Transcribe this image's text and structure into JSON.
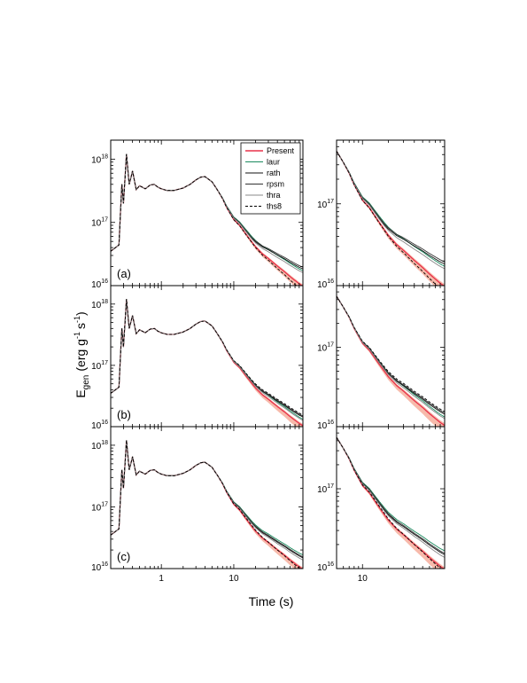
{
  "chart_data": {
    "type": "line",
    "xlabel": "Time (s)",
    "ylabel_main": "E",
    "ylabel_sub": "gen",
    "ylabel_units_open": "(erg g",
    "ylabel_exp1": "-1",
    "ylabel_units_mid": "s",
    "ylabel_exp2": "-1",
    "ylabel_units_close": ")",
    "x_scale": "log",
    "y_scale": "log",
    "left_xlim": [
      0.2,
      90
    ],
    "right_xlim": [
      5,
      90
    ],
    "ylim": [
      1e+16,
      2e+18
    ],
    "left_x_tick_labels": [
      "1",
      "10"
    ],
    "right_x_tick_labels": [
      "10"
    ],
    "y_tick_labels": [
      {
        "base": "10",
        "exp": "18"
      },
      {
        "base": "10",
        "exp": "17"
      },
      {
        "base": "10",
        "exp": "16"
      }
    ],
    "panels": [
      {
        "label": "(a)",
        "show_legend": true,
        "spread": "A"
      },
      {
        "label": "(b)",
        "show_legend": false,
        "spread": "B"
      },
      {
        "label": "(c)",
        "show_legend": false,
        "spread": "C"
      }
    ],
    "legend": {
      "position": "top-right",
      "entries": [
        {
          "name": "Present",
          "color": "#e8324a",
          "dash": "solid"
        },
        {
          "name": "laur",
          "color": "#1a8a5e",
          "dash": "solid"
        },
        {
          "name": "rath",
          "color": "#111111",
          "dash": "solid"
        },
        {
          "name": "rpsm",
          "color": "#333333",
          "dash": "solid"
        },
        {
          "name": "thra",
          "color": "#888888",
          "dash": "solid"
        },
        {
          "name": "ths8",
          "color": "#000000",
          "dash": "dashed"
        }
      ]
    },
    "base_curve": [
      [
        0.2,
        3.5e+16
      ],
      [
        0.26,
        4.4e+16
      ],
      [
        0.285,
        4e+17
      ],
      [
        0.3,
        2e+17
      ],
      [
        0.33,
        1.2e+18
      ],
      [
        0.36,
        4e+17
      ],
      [
        0.4,
        6.5e+17
      ],
      [
        0.45,
        3.3e+17
      ],
      [
        0.5,
        3.8e+17
      ],
      [
        0.6,
        3.4e+17
      ],
      [
        0.7,
        3.9e+17
      ],
      [
        0.8,
        4e+17
      ],
      [
        0.9,
        3.6e+17
      ],
      [
        1.0,
        3.4e+17
      ],
      [
        1.2,
        3.2e+17
      ],
      [
        1.5,
        3.2e+17
      ],
      [
        2.0,
        3.5e+17
      ],
      [
        2.5,
        4e+17
      ],
      [
        3.0,
        4.7e+17
      ],
      [
        3.5,
        5.2e+17
      ],
      [
        4.0,
        5.3e+17
      ],
      [
        5.0,
        4.4e+17
      ],
      [
        6.0,
        3.2e+17
      ],
      [
        7.0,
        2.4e+17
      ],
      [
        8.0,
        1.75e+17
      ],
      [
        10.0,
        1.15e+17
      ],
      [
        12.0,
        9.5e+16
      ],
      [
        15.0,
        6.8e+16
      ],
      [
        20.0,
        4.5e+16
      ],
      [
        25.0,
        3.5e+16
      ],
      [
        30.0,
        3e+16
      ],
      [
        40.0,
        2.3e+16
      ],
      [
        50.0,
        1.9e+16
      ],
      [
        60.0,
        1.6e+16
      ],
      [
        70.0,
        1.4e+16
      ],
      [
        80.0,
        1.25e+16
      ],
      [
        90.0,
        1.15e+16
      ]
    ],
    "series_factors": {
      "A": {
        "Present": [
          0.92,
          0.85
        ],
        "laur": [
          1.12,
          1.5
        ],
        "rath": [
          1.05,
          1.6
        ],
        "rpsm": [
          1.08,
          1.7
        ],
        "thra": [
          1.02,
          1.4
        ],
        "ths8": [
          0.9,
          0.72
        ]
      },
      "B": {
        "Present": [
          0.95,
          0.9
        ],
        "laur": [
          1.05,
          1.15
        ],
        "rath": [
          1.02,
          1.25
        ],
        "rpsm": [
          1.04,
          1.3
        ],
        "thra": [
          1.0,
          1.1
        ],
        "ths8": [
          1.08,
          1.35
        ]
      },
      "C": {
        "Present": [
          0.9,
          0.85
        ],
        "laur": [
          1.1,
          1.45
        ],
        "rath": [
          1.03,
          1.3
        ],
        "rpsm": [
          1.06,
          1.35
        ],
        "thra": [
          1.0,
          1.2
        ],
        "ths8": [
          0.94,
          0.8
        ]
      }
    }
  }
}
